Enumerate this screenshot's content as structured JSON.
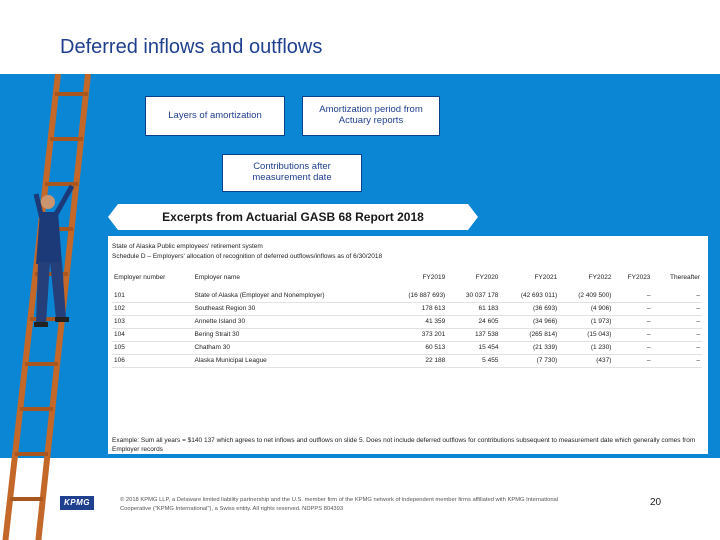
{
  "slide": {
    "title": "Deferred inflows and outflows",
    "boxes": {
      "layers": "Layers of amortization",
      "amortization_period": "Amortization period from Actuary reports",
      "contributions": "Contributions after measurement date"
    },
    "banner": "Excerpts from Actuarial GASB 68 Report 2018"
  },
  "schedule": {
    "line1": "State of Alaska Public employees' retirement system",
    "line2": "Schedule D – Employers' allocation of recognition of deferred outflows/inflows as of 6/30/2018",
    "columns": [
      "Employer number",
      "Employer name",
      "FY2019",
      "FY2020",
      "FY2021",
      "FY2022",
      "FY2023",
      "Thereafter"
    ],
    "rows": [
      [
        "101",
        "State of Alaska (Employer and Nonemployer)",
        "(16 887 693)",
        "30 037 178",
        "(42 693 011)",
        "(2 409 500)",
        "–",
        "–"
      ],
      [
        "102",
        "Southeast Region 30",
        "178 613",
        "61 183",
        "(36 693)",
        "(4 906)",
        "–",
        "–"
      ],
      [
        "103",
        "Annette Island 30",
        "41 359",
        "24 605",
        "(34 966)",
        "(1 973)",
        "–",
        "–"
      ],
      [
        "104",
        "Bering Strait 30",
        "373 201",
        "137 538",
        "(265 814)",
        "(15 043)",
        "–",
        "–"
      ],
      [
        "105",
        "Chatham 30",
        "60 513",
        "15 454",
        "(21 339)",
        "(1 230)",
        "–",
        "–"
      ],
      [
        "106",
        "Alaska Municipal League",
        "22 188",
        "5 455",
        "(7 730)",
        "(437)",
        "–",
        "–"
      ]
    ],
    "note": "Example: Sum all years = $140 137 which agrees to net inflows and outflows on slide 5. Does not include deferred outflows for contributions subsequent to measurement date which generally comes from Employer records"
  },
  "footer": {
    "logo": "KPMG",
    "text": "© 2018 KPMG LLP, a Delaware limited liability partnership and the U.S. member firm of the KPMG network of independent member firms affiliated with KPMG International Cooperative (\"KPMG International\"), a Swiss entity. All rights reserved. NDPPS 804393",
    "page_number": "20"
  },
  "colors": {
    "accent": "#0a86d4",
    "brand": "#1f3f8f",
    "ladder": "#c4682a"
  },
  "icons": {
    "illustration": "ladder-climber-icon",
    "logo": "kpmg-logo-icon"
  }
}
